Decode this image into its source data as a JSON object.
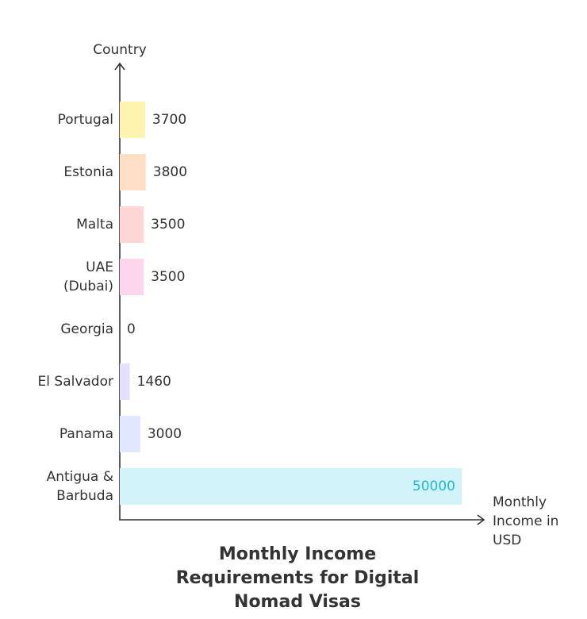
{
  "chart_data": {
    "type": "bar",
    "orientation": "horizontal",
    "title": "Monthly Income Requirements for Digital Nomad Visas",
    "y_label": "Country",
    "x_label": "Monthly Income in USD",
    "categories": [
      "Portugal",
      "Estonia",
      "Malta",
      "UAE\n(Dubai)",
      "Georgia",
      "El Salvador",
      "Panama",
      "Antigua &\nBarbuda"
    ],
    "values": [
      3700,
      3800,
      3500,
      3500,
      0,
      1460,
      3000,
      50000
    ],
    "colors": [
      "#fff3b0",
      "#ffe0c7",
      "#ffd6d6",
      "#fdd6ee",
      "#eeeeee",
      "#e6e0ff",
      "#dfe8ff",
      "#d3f3fa"
    ],
    "xlim": [
      0,
      50000
    ]
  }
}
